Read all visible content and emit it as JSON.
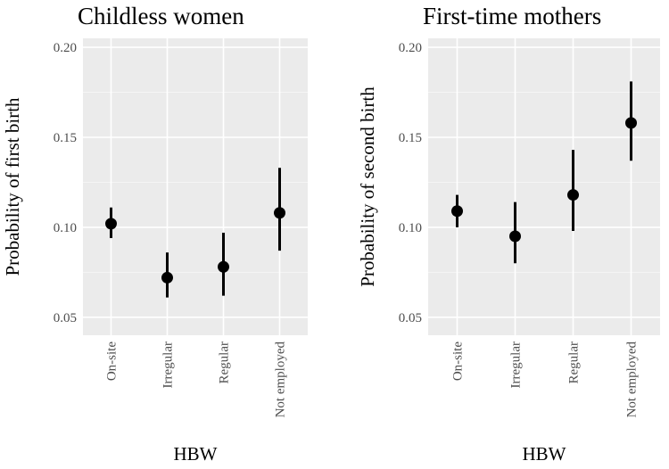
{
  "chart_data": [
    {
      "type": "pointrange",
      "title": "Childless women",
      "xlabel": "HBW",
      "ylabel": "Probability of first birth",
      "categories": [
        "On-site",
        "Irregular",
        "Regular",
        "Not employed"
      ],
      "ylim": [
        0.04,
        0.205
      ],
      "yticks": [
        "0.05",
        "0.10",
        "0.15",
        "0.20"
      ],
      "grid": true,
      "points": [
        {
          "category": "On-site",
          "value": 0.102,
          "lower": 0.094,
          "upper": 0.111
        },
        {
          "category": "Irregular",
          "value": 0.072,
          "lower": 0.061,
          "upper": 0.086
        },
        {
          "category": "Regular",
          "value": 0.078,
          "lower": 0.062,
          "upper": 0.097
        },
        {
          "category": "Not employed",
          "value": 0.108,
          "lower": 0.087,
          "upper": 0.133
        }
      ]
    },
    {
      "type": "pointrange",
      "title": "First-time mothers",
      "xlabel": "HBW",
      "ylabel": "Probability of second birth",
      "categories": [
        "On-site",
        "Irregular",
        "Regular",
        "Not employed"
      ],
      "ylim": [
        0.04,
        0.205
      ],
      "yticks": [
        "0.05",
        "0.10",
        "0.15",
        "0.20"
      ],
      "grid": true,
      "points": [
        {
          "category": "On-site",
          "value": 0.109,
          "lower": 0.1,
          "upper": 0.118
        },
        {
          "category": "Irregular",
          "value": 0.095,
          "lower": 0.08,
          "upper": 0.114
        },
        {
          "category": "Regular",
          "value": 0.118,
          "lower": 0.098,
          "upper": 0.143
        },
        {
          "category": "Not employed",
          "value": 0.158,
          "lower": 0.137,
          "upper": 0.181
        }
      ]
    }
  ],
  "colors": {
    "panel_background": "#ebebeb",
    "grid_major": "#ffffff",
    "grid_minor": "#f5f5f5",
    "marker": "#000000",
    "tick_text": "#4d4d4d"
  }
}
